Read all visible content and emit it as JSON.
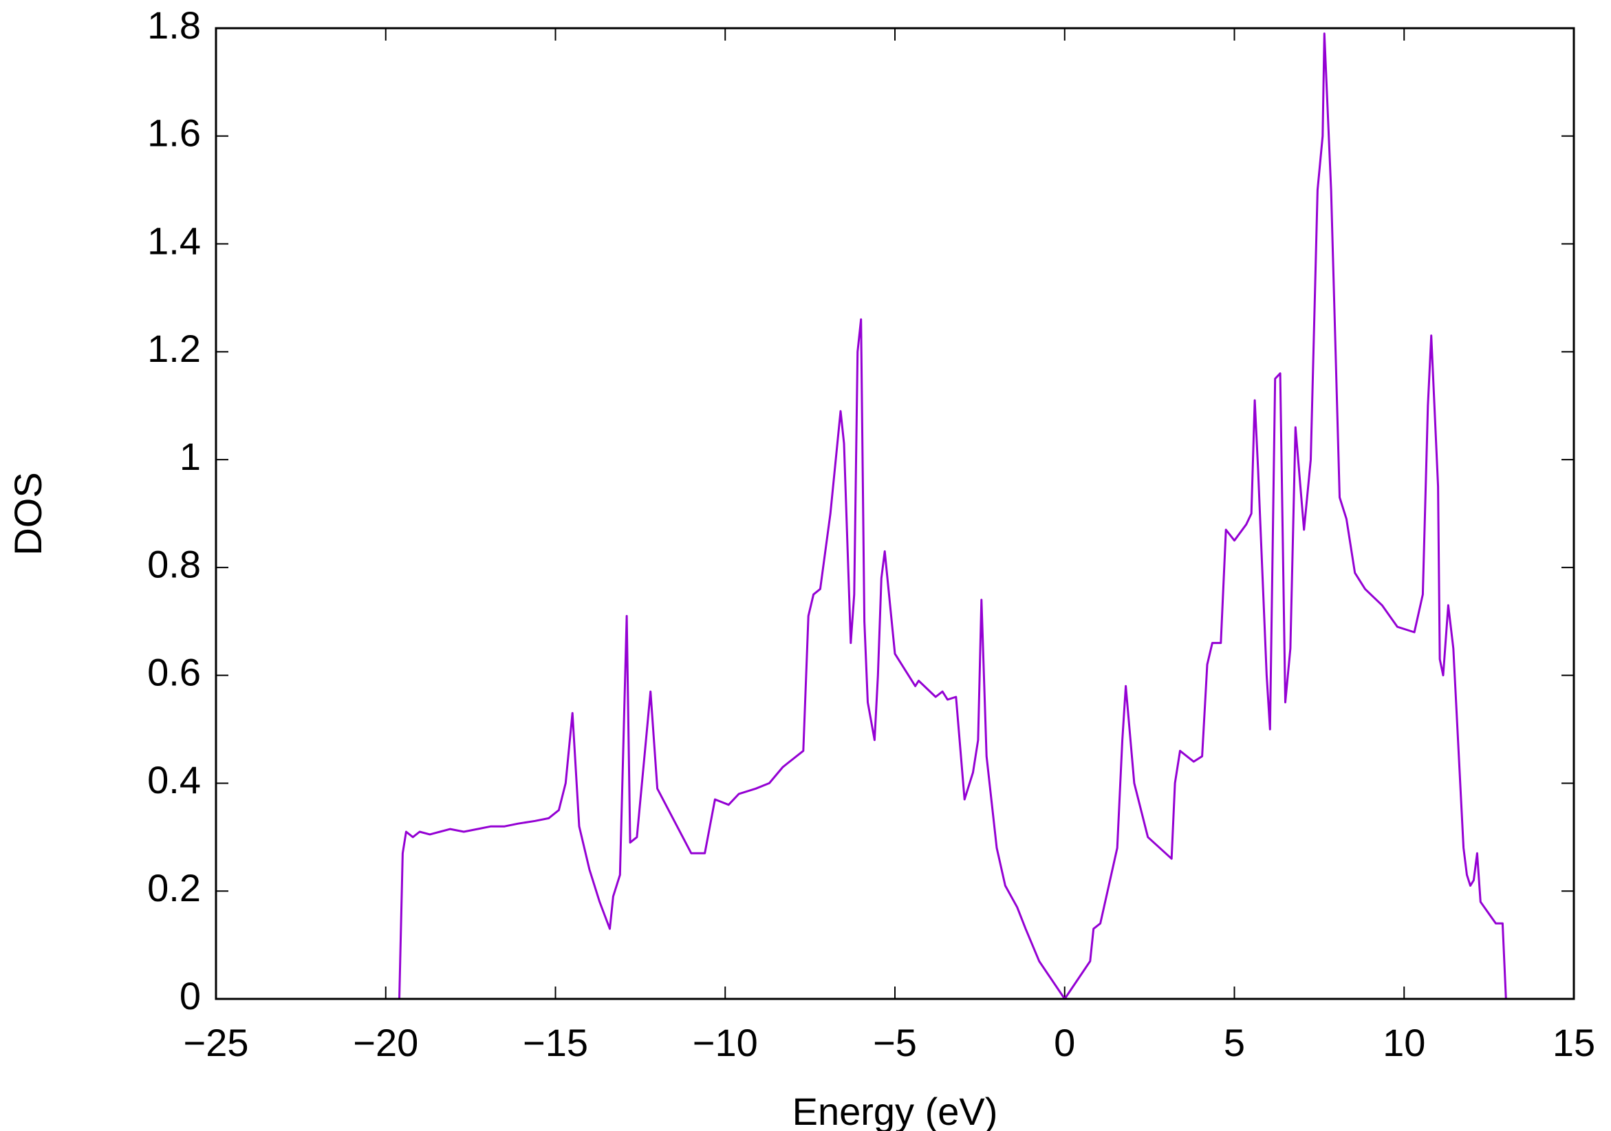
{
  "chart_data": {
    "type": "line",
    "xlabel": "Energy (eV)",
    "ylabel": "DOS",
    "color": "#9400d3",
    "grid": false,
    "xlim": [
      -25,
      15
    ],
    "xticks": [
      {
        "value": -25,
        "label": "−25"
      },
      {
        "value": -20,
        "label": "−20"
      },
      {
        "value": -15,
        "label": "−15"
      },
      {
        "value": -10,
        "label": "−10"
      },
      {
        "value": -5,
        "label": "−5"
      },
      0,
      5,
      10,
      15
    ],
    "ylim": [
      0,
      1.8
    ],
    "yticks": [
      0,
      0.2,
      0.4,
      0.6,
      0.8,
      1,
      1.2,
      1.4,
      1.6,
      1.8
    ],
    "x": [
      -19.6,
      -19.5,
      -19.4,
      -19.2,
      -19.0,
      -18.7,
      -18.4,
      -18.1,
      -17.7,
      -17.3,
      -16.9,
      -16.5,
      -16.1,
      -15.6,
      -15.2,
      -14.9,
      -14.7,
      -14.5,
      -14.3,
      -14.0,
      -13.7,
      -13.4,
      -13.3,
      -13.1,
      -12.9,
      -12.8,
      -12.6,
      -12.2,
      -12.0,
      -11.0,
      -10.6,
      -10.3,
      -9.9,
      -9.6,
      -9.1,
      -8.7,
      -8.3,
      -7.7,
      -7.55,
      -7.4,
      -7.2,
      -6.9,
      -6.6,
      -6.5,
      -6.3,
      -6.2,
      -6.1,
      -6.0,
      -5.9,
      -5.8,
      -5.6,
      -5.5,
      -5.4,
      -5.3,
      -5.0,
      -4.4,
      -4.3,
      -3.8,
      -3.6,
      -3.45,
      -3.2,
      -2.95,
      -2.7,
      -2.55,
      -2.45,
      -2.3,
      -2.0,
      -1.75,
      -1.4,
      -1.15,
      -0.75,
      0,
      0.75,
      0.85,
      1.05,
      1.55,
      1.7,
      1.8,
      2.05,
      2.45,
      3.15,
      3.25,
      3.4,
      3.8,
      4.05,
      4.2,
      4.35,
      4.6,
      4.75,
      5.0,
      5.35,
      5.5,
      5.6,
      5.7,
      5.95,
      6.05,
      6.2,
      6.35,
      6.5,
      6.65,
      6.8,
      7.05,
      7.25,
      7.45,
      7.6,
      7.65,
      7.85,
      8.1,
      8.3,
      8.55,
      8.85,
      9.35,
      9.8,
      10.3,
      10.55,
      10.7,
      10.8,
      11.0,
      11.05,
      11.15,
      11.3,
      11.45,
      11.75,
      11.85,
      11.95,
      12.05,
      12.15,
      12.25,
      12.7,
      12.9,
      13.0
    ],
    "values": [
      0,
      0.27,
      0.31,
      0.3,
      0.31,
      0.305,
      0.31,
      0.315,
      0.31,
      0.315,
      0.32,
      0.32,
      0.325,
      0.33,
      0.335,
      0.35,
      0.4,
      0.53,
      0.32,
      0.24,
      0.18,
      0.13,
      0.19,
      0.23,
      0.71,
      0.29,
      0.3,
      0.57,
      0.39,
      0.27,
      0.27,
      0.37,
      0.36,
      0.38,
      0.39,
      0.4,
      0.43,
      0.46,
      0.71,
      0.75,
      0.76,
      0.9,
      1.09,
      1.03,
      0.66,
      0.75,
      1.2,
      1.26,
      0.7,
      0.55,
      0.48,
      0.6,
      0.78,
      0.83,
      0.64,
      0.58,
      0.59,
      0.56,
      0.57,
      0.555,
      0.56,
      0.37,
      0.42,
      0.48,
      0.74,
      0.45,
      0.28,
      0.21,
      0.17,
      0.13,
      0.07,
      0,
      0.07,
      0.13,
      0.14,
      0.28,
      0.48,
      0.58,
      0.4,
      0.3,
      0.26,
      0.4,
      0.46,
      0.44,
      0.45,
      0.62,
      0.66,
      0.66,
      0.87,
      0.85,
      0.88,
      0.9,
      1.11,
      0.98,
      0.6,
      0.5,
      1.15,
      1.16,
      0.55,
      0.65,
      1.06,
      0.87,
      1.0,
      1.5,
      1.6,
      1.79,
      1.5,
      0.93,
      0.89,
      0.79,
      0.76,
      0.73,
      0.69,
      0.68,
      0.75,
      1.1,
      1.23,
      0.95,
      0.63,
      0.6,
      0.73,
      0.65,
      0.28,
      0.23,
      0.21,
      0.22,
      0.27,
      0.18,
      0.14,
      0.14,
      0
    ]
  }
}
